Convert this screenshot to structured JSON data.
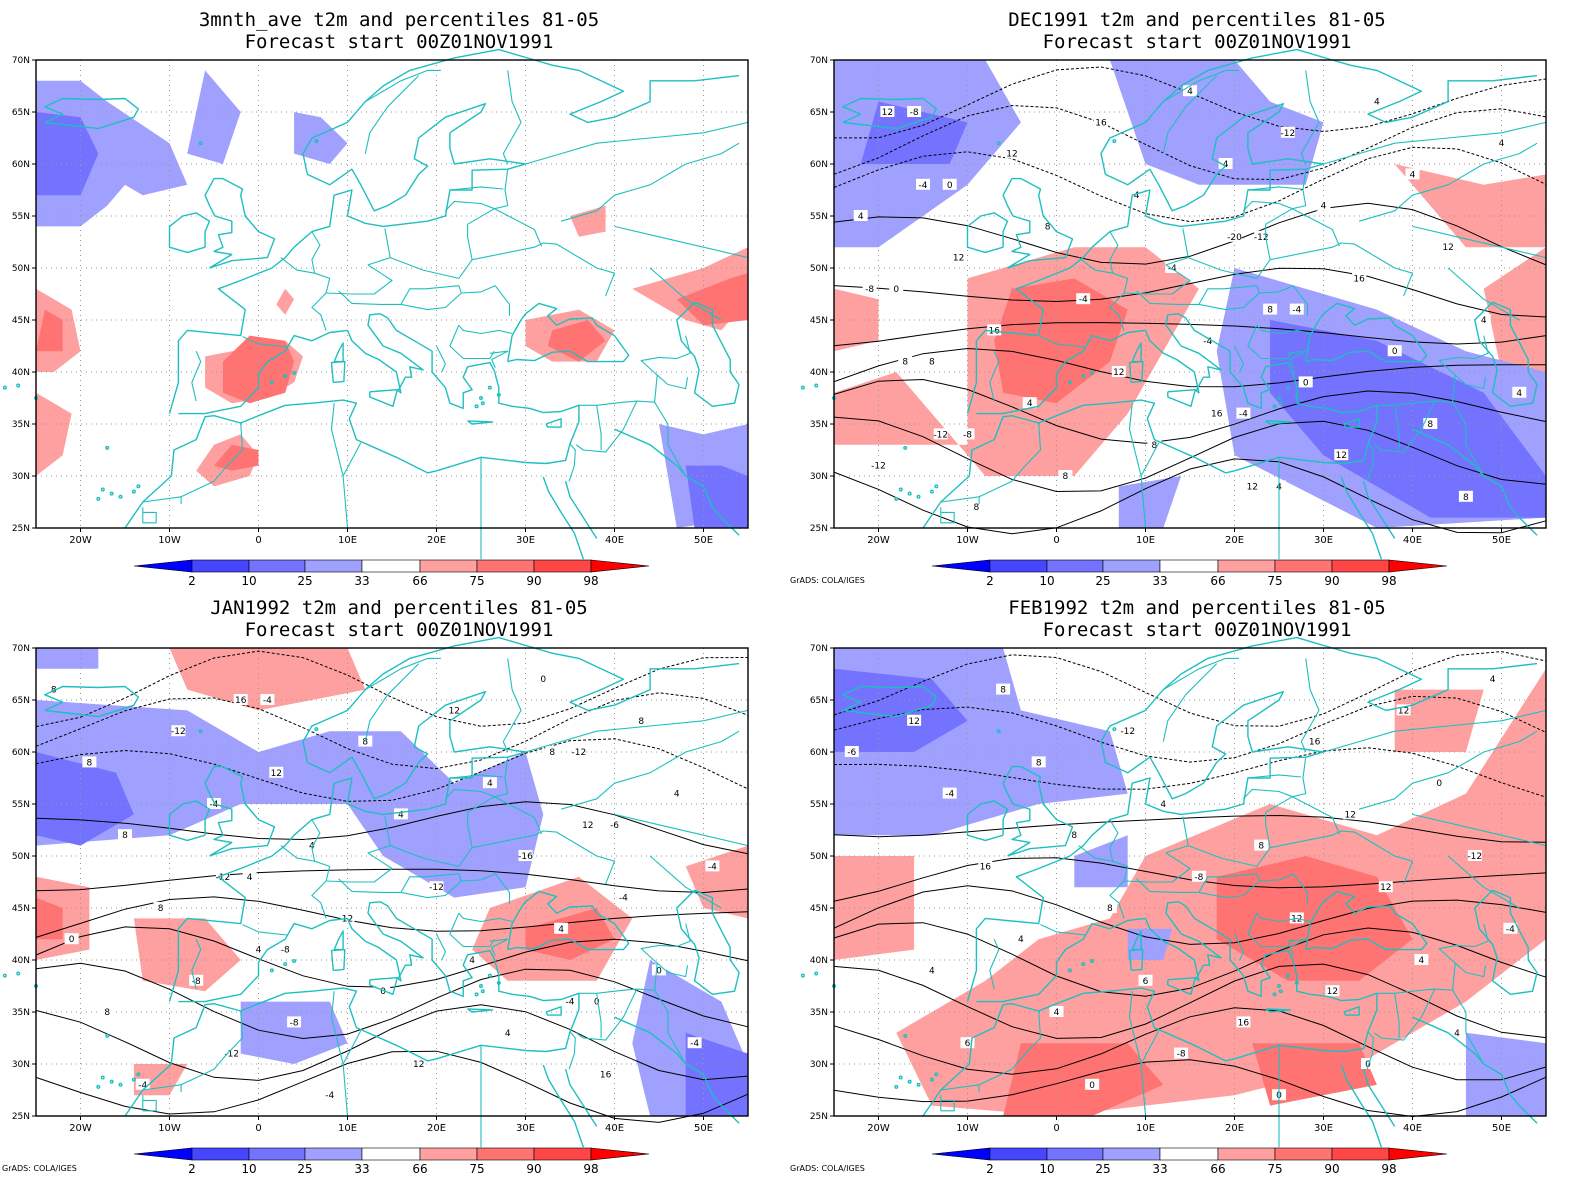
{
  "panels": [
    {
      "title1": "3mnth_ave t2m and percentiles 81-05",
      "title2": "Forecast start 00Z01NOV1991",
      "credit": ""
    },
    {
      "title1": "DEC1991 t2m and percentiles 81-05",
      "title2": "Forecast start 00Z01NOV1991",
      "credit": "GrADS: COLA/IGES"
    },
    {
      "title1": "JAN1992 t2m and percentiles 81-05",
      "title2": "Forecast start 00Z01NOV1991",
      "credit": "GrADS: COLA/IGES"
    },
    {
      "title1": "FEB1992 t2m and percentiles 81-05",
      "title2": "Forecast start 00Z01NOV1991",
      "credit": "GrADS: COLA/IGES"
    }
  ],
  "chart_data": {
    "type": "heatmap",
    "lat_labels": [
      "70N",
      "65N",
      "60N",
      "55N",
      "50N",
      "45N",
      "40N",
      "35N",
      "30N",
      "25N"
    ],
    "lon_labels": [
      "20W",
      "10W",
      "0",
      "10E",
      "20E",
      "30E",
      "40E",
      "50E"
    ],
    "lat_range": [
      25,
      70
    ],
    "lon_range": [
      -25,
      55
    ],
    "colorbar": {
      "labels": [
        "2",
        "10",
        "25",
        "33",
        "66",
        "75",
        "90",
        "98"
      ],
      "colors": [
        "#0000ff",
        "#4646ff",
        "#7373ff",
        "#a0a0ff",
        "#ffffff",
        "#ffa0a0",
        "#ff7373",
        "#ff4646",
        "#ff0000"
      ]
    },
    "contour_labels": {
      "p1": [
        "-8",
        "-4",
        "0",
        "4",
        "8",
        "-12",
        "-8",
        "-4",
        "0",
        "4",
        "-12",
        "-4",
        "4",
        "4",
        "4",
        "-4",
        "4",
        "8",
        "4",
        "4",
        "8",
        "12",
        "12",
        "16",
        "8",
        "-4",
        "4",
        "8",
        "0",
        "8",
        "4",
        "4",
        "16",
        "12",
        "12",
        "16",
        "4",
        "8",
        "0",
        "12",
        "-12",
        "-12",
        "8",
        "-4",
        "12",
        "8",
        "-20",
        "12",
        "16",
        "-8"
      ],
      "p2": [
        "-8",
        "-6",
        "-4",
        "0",
        "4",
        "-12",
        "-12",
        "4",
        "-4",
        "0",
        "-8",
        "-16",
        "-12",
        "4",
        "8",
        "4",
        "-4",
        "4",
        "8",
        "12",
        "8",
        "-12",
        "8",
        "12",
        "0",
        "4",
        "8",
        "0",
        "-4",
        "8",
        "-4",
        "12",
        "4",
        "-4",
        "0",
        "4",
        "8",
        "-8",
        "-4",
        "12",
        "16",
        "4",
        "12",
        "16",
        "-4",
        "-12",
        "8"
      ],
      "p3": [
        "-8",
        "-6",
        "-8",
        "-4",
        "4",
        "4",
        "6",
        "-12",
        "-12",
        "4",
        "8",
        "0",
        "0",
        "4",
        "8",
        "12",
        "4",
        "12",
        "8",
        "0",
        "4",
        "12",
        "8",
        "12",
        "16",
        "16",
        "6",
        "12",
        "-4",
        "0",
        "4",
        "8",
        "12",
        "16"
      ]
    }
  }
}
